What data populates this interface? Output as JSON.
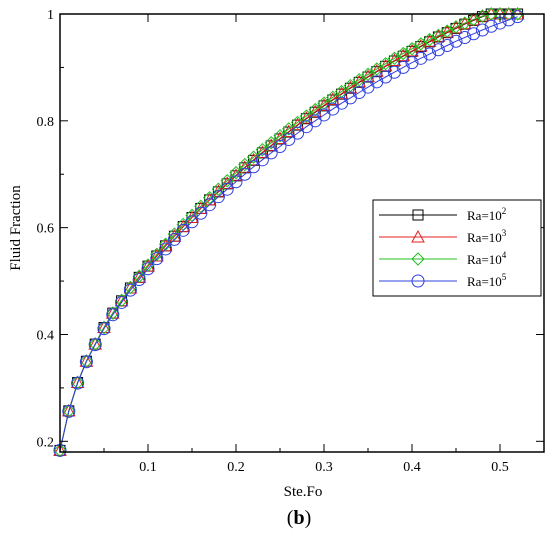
{
  "chart_data": {
    "type": "line",
    "xlabel": "Ste.Fo",
    "ylabel": "Fluid Fraction",
    "panel_label_open": "(",
    "panel_label_letter": "b",
    "panel_label_close": ")",
    "xlim": [
      0,
      0.55
    ],
    "ylim": [
      0.18,
      1.0
    ],
    "xticks": [
      0.1,
      0.2,
      0.3,
      0.4,
      0.5
    ],
    "xtick_labels": [
      "0.1",
      "0.2",
      "0.3",
      "0.4",
      "0.5"
    ],
    "yticks": [
      0.2,
      0.4,
      0.6,
      0.8,
      1.0
    ],
    "ytick_labels": [
      "0.2",
      "0.4",
      "0.6",
      "0.8",
      "1"
    ],
    "grid": false,
    "legend_position": "right-middle",
    "x": [
      0,
      0.01,
      0.02,
      0.03,
      0.04,
      0.05,
      0.06,
      0.07,
      0.08,
      0.09,
      0.1,
      0.11,
      0.12,
      0.13,
      0.14,
      0.15,
      0.16,
      0.17,
      0.18,
      0.19,
      0.2,
      0.21,
      0.22,
      0.23,
      0.24,
      0.25,
      0.26,
      0.27,
      0.28,
      0.29,
      0.3,
      0.31,
      0.32,
      0.33,
      0.34,
      0.35,
      0.36,
      0.37,
      0.38,
      0.39,
      0.4,
      0.41,
      0.42,
      0.43,
      0.44,
      0.45,
      0.46,
      0.47,
      0.48,
      0.49,
      0.5,
      0.51,
      0.52
    ],
    "series": [
      {
        "name_base": "Ra=10",
        "name_exp": "2",
        "color": "#000000",
        "marker": "square",
        "values": [
          0.183,
          0.257,
          0.31,
          0.35,
          0.382,
          0.413,
          0.44,
          0.463,
          0.487,
          0.507,
          0.528,
          0.547,
          0.566,
          0.584,
          0.602,
          0.619,
          0.636,
          0.652,
          0.667,
          0.682,
          0.697,
          0.712,
          0.726,
          0.74,
          0.753,
          0.766,
          0.779,
          0.792,
          0.804,
          0.816,
          0.828,
          0.839,
          0.85,
          0.861,
          0.872,
          0.882,
          0.892,
          0.902,
          0.912,
          0.921,
          0.93,
          0.939,
          0.948,
          0.957,
          0.965,
          0.973,
          0.981,
          0.988,
          0.995,
          1.0,
          1.0,
          1.0,
          1.0
        ]
      },
      {
        "name_base": "Ra=10",
        "name_exp": "3",
        "color": "#e02020",
        "marker": "triangle",
        "values": [
          0.183,
          0.257,
          0.31,
          0.35,
          0.382,
          0.413,
          0.44,
          0.463,
          0.487,
          0.507,
          0.528,
          0.547,
          0.566,
          0.584,
          0.602,
          0.619,
          0.636,
          0.652,
          0.668,
          0.683,
          0.698,
          0.713,
          0.727,
          0.741,
          0.754,
          0.767,
          0.78,
          0.793,
          0.805,
          0.817,
          0.829,
          0.84,
          0.851,
          0.862,
          0.873,
          0.883,
          0.893,
          0.903,
          0.913,
          0.922,
          0.931,
          0.94,
          0.949,
          0.958,
          0.966,
          0.974,
          0.982,
          0.989,
          0.996,
          1.0,
          1.0,
          1.0,
          1.0
        ]
      },
      {
        "name_base": "Ra=10",
        "name_exp": "4",
        "color": "#22c022",
        "marker": "diamond",
        "values": [
          0.183,
          0.257,
          0.31,
          0.35,
          0.382,
          0.413,
          0.44,
          0.464,
          0.488,
          0.509,
          0.53,
          0.55,
          0.569,
          0.588,
          0.606,
          0.623,
          0.64,
          0.656,
          0.672,
          0.688,
          0.703,
          0.718,
          0.732,
          0.746,
          0.759,
          0.772,
          0.785,
          0.797,
          0.809,
          0.821,
          0.833,
          0.844,
          0.855,
          0.866,
          0.877,
          0.887,
          0.897,
          0.907,
          0.917,
          0.926,
          0.935,
          0.944,
          0.952,
          0.96,
          0.968,
          0.976,
          0.983,
          0.99,
          0.996,
          1.0,
          1.0,
          1.0,
          1.0
        ]
      },
      {
        "name_base": "Ra=10",
        "name_exp": "5",
        "color": "#3040e0",
        "marker": "circle",
        "values": [
          0.183,
          0.256,
          0.309,
          0.349,
          0.381,
          0.411,
          0.437,
          0.46,
          0.483,
          0.503,
          0.523,
          0.542,
          0.56,
          0.578,
          0.595,
          0.611,
          0.627,
          0.643,
          0.658,
          0.672,
          0.686,
          0.7,
          0.714,
          0.727,
          0.74,
          0.752,
          0.765,
          0.777,
          0.789,
          0.8,
          0.811,
          0.822,
          0.833,
          0.843,
          0.853,
          0.863,
          0.873,
          0.882,
          0.891,
          0.9,
          0.909,
          0.917,
          0.925,
          0.933,
          0.941,
          0.949,
          0.956,
          0.963,
          0.97,
          0.977,
          0.983,
          0.989,
          0.995
        ]
      }
    ]
  }
}
